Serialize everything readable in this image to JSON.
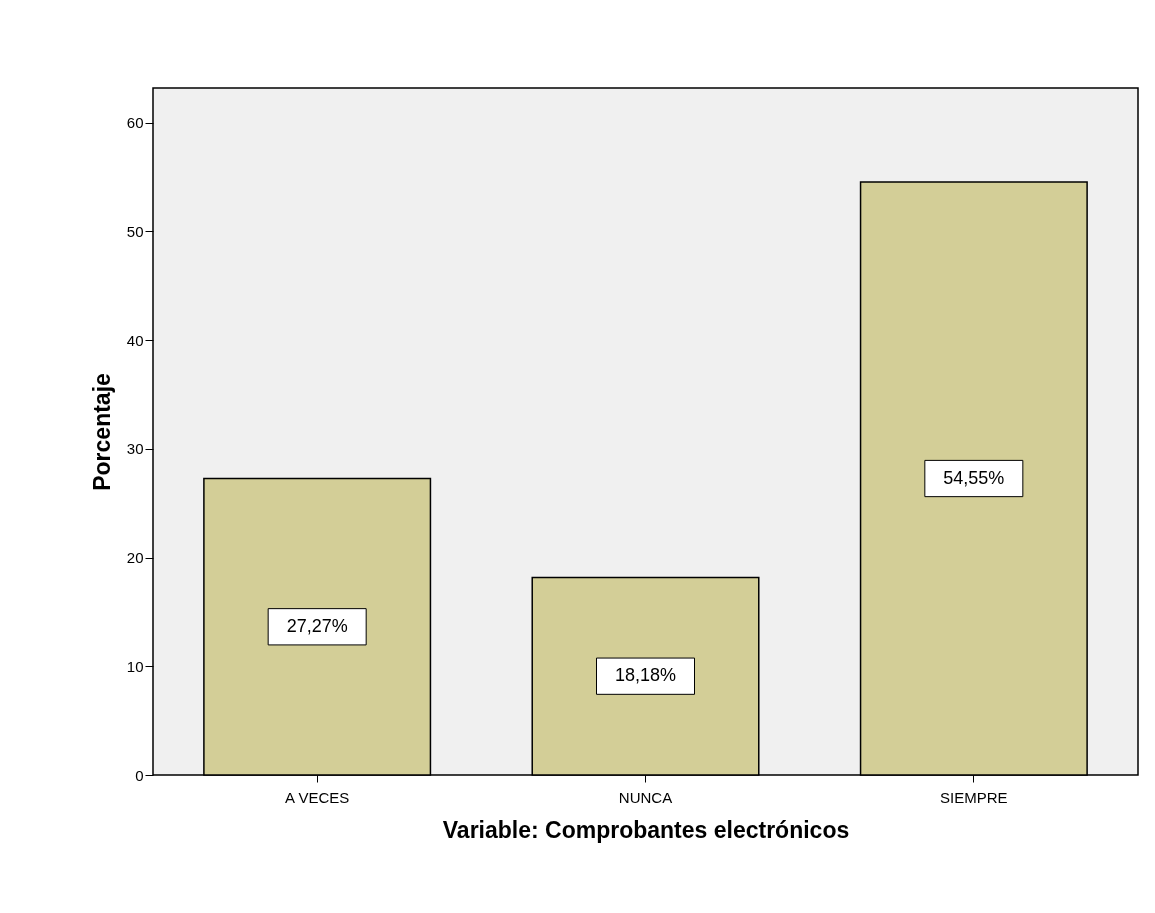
{
  "chart_data": {
    "type": "bar",
    "xlabel": "Variable: Comprobantes electrónicos",
    "ylabel": "Porcentaje",
    "categories": [
      "A VECES",
      "NUNCA",
      "SIEMPRE"
    ],
    "values": [
      27.27,
      18.18,
      54.55
    ],
    "value_labels": [
      "27,27%",
      "18,18%",
      "54,55%"
    ],
    "color": "#d3ce97",
    "ylim": [
      0,
      63.2
    ],
    "yticks": [
      0,
      10,
      20,
      30,
      40,
      50,
      60
    ],
    "grid": false
  }
}
